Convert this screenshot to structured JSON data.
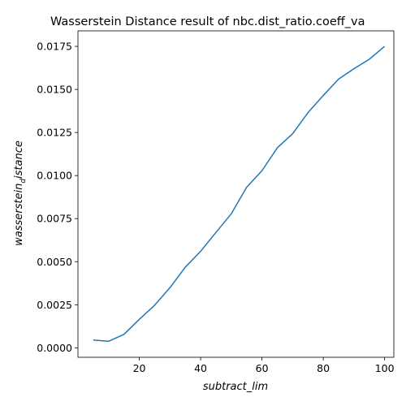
{
  "chart_data": {
    "type": "line",
    "title": "Wasserstein Distance result of nbc.dist_ratio.coeff_va",
    "xlabel": "subtract_lim",
    "ylabel_main": "wasserstein",
    "ylabel_sub": "d",
    "ylabel_tail": "istance",
    "xlim": [
      0,
      103
    ],
    "ylim": [
      -0.00055,
      0.0184
    ],
    "grid": false,
    "xticks": [
      {
        "value": 20,
        "label": "20"
      },
      {
        "value": 40,
        "label": "40"
      },
      {
        "value": 60,
        "label": "60"
      },
      {
        "value": 80,
        "label": "80"
      },
      {
        "value": 100,
        "label": "100"
      }
    ],
    "yticks": [
      {
        "value": 0.0,
        "label": "0.0000"
      },
      {
        "value": 0.0025,
        "label": "0.0025"
      },
      {
        "value": 0.005,
        "label": "0.0050"
      },
      {
        "value": 0.0075,
        "label": "0.0075"
      },
      {
        "value": 0.01,
        "label": "0.0100"
      },
      {
        "value": 0.0125,
        "label": "0.0125"
      },
      {
        "value": 0.015,
        "label": "0.0150"
      },
      {
        "value": 0.0175,
        "label": "0.0175"
      }
    ],
    "series": [
      {
        "color": "#1f77b4",
        "x": [
          5,
          10,
          15,
          20,
          25,
          30,
          35,
          40,
          45,
          50,
          55,
          60,
          65,
          70,
          75,
          80,
          85,
          90,
          95,
          100
        ],
        "y": [
          0.00045,
          0.00038,
          0.00078,
          0.00165,
          0.00247,
          0.00349,
          0.00468,
          0.0056,
          0.0067,
          0.00778,
          0.00932,
          0.01028,
          0.01161,
          0.01243,
          0.01365,
          0.01465,
          0.0156,
          0.0162,
          0.01675,
          0.0175
        ]
      }
    ]
  }
}
